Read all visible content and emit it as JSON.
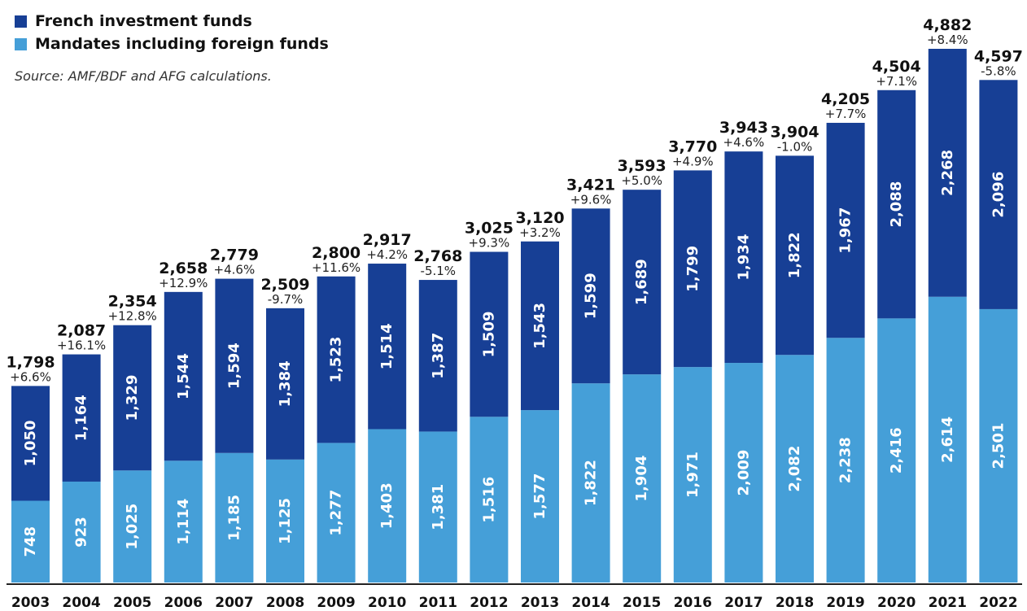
{
  "chart_data": {
    "type": "bar",
    "stacked": true,
    "source": "Source: AMF/BDF and AFG calculations.",
    "categories": [
      "2003",
      "2004",
      "2005",
      "2006",
      "2007",
      "2008",
      "2009",
      "2010",
      "2011",
      "2012",
      "2013",
      "2014",
      "2015",
      "2016",
      "2017",
      "2018",
      "2019",
      "2020",
      "2021",
      "2022"
    ],
    "series": [
      {
        "name": "Mandates including foreign funds",
        "color": "#459fd8",
        "values": [
          748,
          923,
          1025,
          1114,
          1185,
          1125,
          1277,
          1403,
          1381,
          1516,
          1577,
          1822,
          1904,
          1971,
          2009,
          2082,
          2238,
          2416,
          2614,
          2501
        ],
        "labels": [
          "748",
          "923",
          "1,025",
          "1,114",
          "1,185",
          "1,125",
          "1,277",
          "1,403",
          "1,381",
          "1,516",
          "1,577",
          "1,822",
          "1,904",
          "1,971",
          "2,009",
          "2,082",
          "2,238",
          "2,416",
          "2,614",
          "2,501"
        ]
      },
      {
        "name": "French investment funds",
        "color": "#173f95",
        "values": [
          1050,
          1164,
          1329,
          1544,
          1594,
          1384,
          1523,
          1514,
          1387,
          1509,
          1543,
          1599,
          1689,
          1799,
          1934,
          1822,
          1967,
          2088,
          2268,
          2096
        ],
        "labels": [
          "1,050",
          "1,164",
          "1,329",
          "1,544",
          "1,594",
          "1,384",
          "1,523",
          "1,514",
          "1,387",
          "1,509",
          "1,543",
          "1,599",
          "1,689",
          "1,799",
          "1,934",
          "1,822",
          "1,967",
          "2,088",
          "2,268",
          "2,096"
        ]
      }
    ],
    "totals": [
      1798,
      2087,
      2354,
      2658,
      2779,
      2509,
      2800,
      2917,
      2768,
      3025,
      3120,
      3421,
      3593,
      3770,
      3943,
      3904,
      4205,
      4504,
      4882,
      4597
    ],
    "total_labels": [
      "1,798",
      "2,087",
      "2,354",
      "2,658",
      "2,779",
      "2,509",
      "2,800",
      "2,917",
      "2,768",
      "3,025",
      "3,120",
      "3,421",
      "3,593",
      "3,770",
      "3,943",
      "3,904",
      "4,205",
      "4,504",
      "4,882",
      "4,597"
    ],
    "growth_labels": [
      "+6.6%",
      "+16.1%",
      "+12.8%",
      "+12.9%",
      "+4.6%",
      "-9.7%",
      "+11.6%",
      "+4.2%",
      "-5.1%",
      "+9.3%",
      "+3.2%",
      "+9.6%",
      "+5.0%",
      "+4.9%",
      "+4.6%",
      "-1.0%",
      "+7.7%",
      "+7.1%",
      "+8.4%",
      "-5.8%"
    ],
    "ylim": [
      0,
      4882
    ],
    "legend_position": "top-left",
    "grid": false
  }
}
